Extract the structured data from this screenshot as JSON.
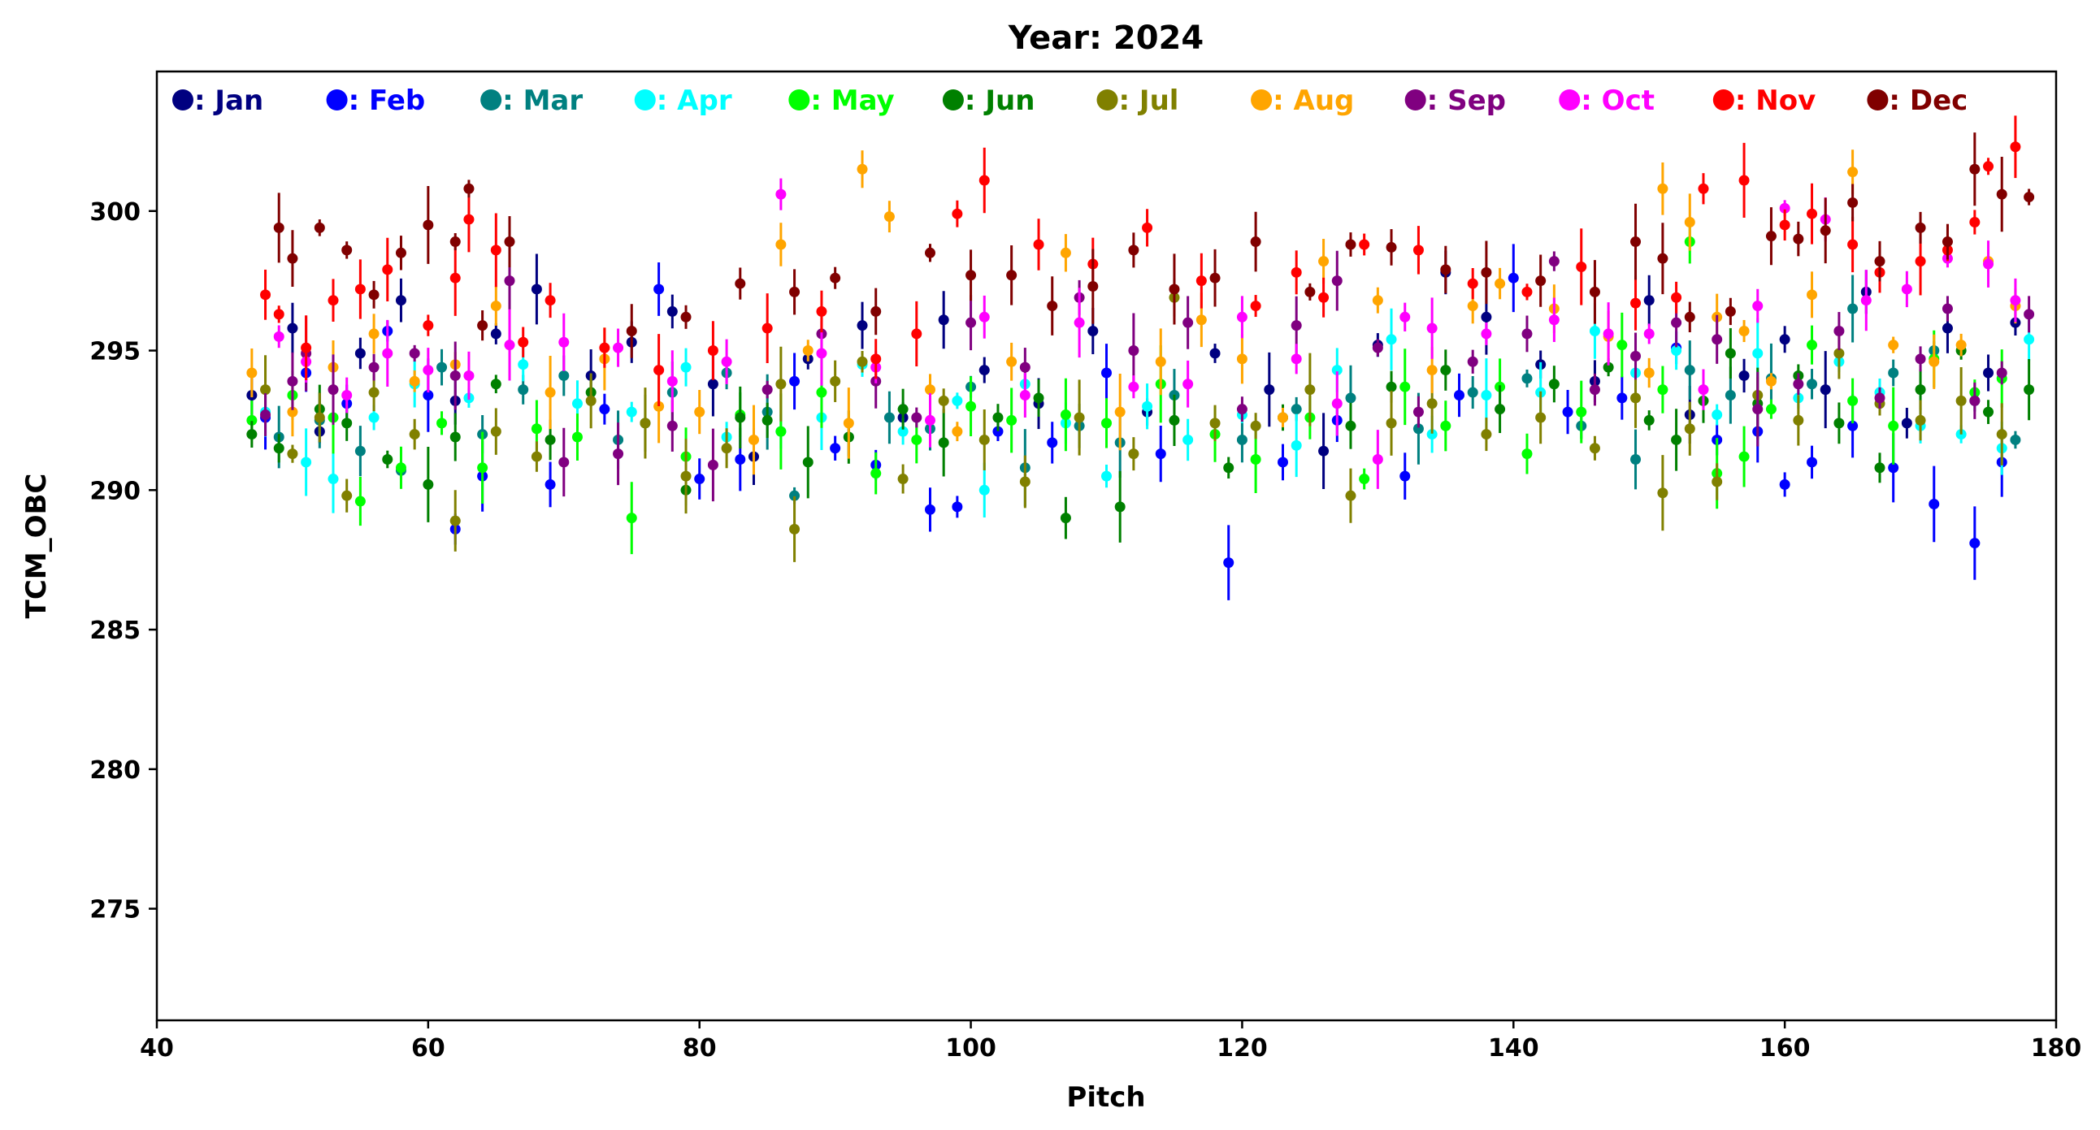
{
  "chart_data": {
    "type": "scatter",
    "title": "Year: 2024",
    "xlabel": "Pitch",
    "ylabel": "TCM_OBC",
    "xlim": [
      40,
      180
    ],
    "ylim": [
      271,
      305
    ],
    "xticks": [
      40,
      60,
      80,
      100,
      120,
      140,
      160,
      180
    ],
    "yticks": [
      275,
      280,
      285,
      290,
      295,
      300
    ],
    "grid": false,
    "legend": "top",
    "error_bars": true,
    "series": [
      {
        "name": ": Jan",
        "color": "#000080",
        "x": [
          47,
          50,
          52,
          55,
          58,
          62,
          65,
          68,
          72,
          75,
          78,
          81,
          84,
          88,
          92,
          95,
          98,
          101,
          105,
          109,
          113,
          118,
          122,
          126,
          130,
          135,
          138,
          142,
          146,
          150,
          153,
          157,
          160,
          163,
          166,
          169,
          172,
          175,
          177
        ],
        "y": [
          293.4,
          295.8,
          292.1,
          294.9,
          296.8,
          293.2,
          295.6,
          297.2,
          294.1,
          295.3,
          296.4,
          293.8,
          291.2,
          294.7,
          295.9,
          292.6,
          296.1,
          294.3,
          293.1,
          295.7,
          292.8,
          294.9,
          293.6,
          291.4,
          295.2,
          297.8,
          296.2,
          294.5,
          293.9,
          296.8,
          292.7,
          294.1,
          295.4,
          293.6,
          297.1,
          292.4,
          295.8,
          294.2,
          296.0
        ]
      },
      {
        "name": ": Feb",
        "color": "#0000ff",
        "x": [
          48,
          51,
          54,
          57,
          60,
          62,
          64,
          69,
          73,
          77,
          80,
          83,
          87,
          90,
          93,
          97,
          99,
          102,
          106,
          110,
          114,
          119,
          123,
          127,
          132,
          136,
          140,
          144,
          148,
          152,
          155,
          158,
          160,
          162,
          165,
          168,
          171,
          174,
          176
        ],
        "y": [
          292.6,
          294.2,
          293.1,
          295.7,
          293.4,
          288.6,
          290.5,
          290.2,
          292.9,
          297.2,
          290.4,
          291.1,
          293.9,
          291.5,
          290.9,
          289.3,
          289.4,
          292.1,
          291.7,
          294.2,
          291.3,
          287.4,
          291.0,
          292.5,
          290.5,
          293.4,
          297.6,
          292.8,
          293.3,
          295.1,
          291.8,
          292.1,
          290.2,
          291.0,
          292.3,
          290.8,
          289.5,
          288.1,
          291.0
        ]
      },
      {
        "name": ": Mar",
        "color": "#008080",
        "x": [
          49,
          52,
          55,
          58,
          61,
          64,
          67,
          70,
          74,
          78,
          82,
          85,
          87,
          91,
          94,
          97,
          100,
          104,
          108,
          111,
          115,
          120,
          124,
          128,
          133,
          137,
          141,
          145,
          149,
          153,
          156,
          159,
          162,
          165,
          168,
          171,
          174,
          177
        ],
        "y": [
          291.9,
          292.5,
          291.4,
          290.7,
          294.4,
          292.0,
          293.6,
          294.1,
          291.8,
          293.5,
          294.2,
          292.8,
          289.8,
          291.9,
          292.6,
          292.2,
          293.7,
          290.8,
          292.3,
          291.7,
          293.4,
          291.8,
          292.9,
          293.3,
          292.2,
          293.5,
          294.0,
          292.3,
          291.1,
          294.3,
          293.4,
          294.0,
          293.8,
          296.5,
          294.2,
          295.0,
          293.2,
          291.8
        ]
      },
      {
        "name": ": Apr",
        "color": "#00ffff",
        "x": [
          48,
          51,
          53,
          56,
          59,
          63,
          67,
          71,
          75,
          79,
          82,
          86,
          89,
          92,
          95,
          99,
          101,
          104,
          107,
          110,
          113,
          116,
          120,
          124,
          127,
          131,
          134,
          138,
          142,
          146,
          149,
          152,
          155,
          158,
          161,
          164,
          167,
          170,
          173,
          176,
          178
        ],
        "y": [
          292.8,
          291.0,
          290.4,
          292.6,
          293.8,
          293.3,
          294.5,
          293.1,
          292.8,
          294.4,
          291.9,
          292.1,
          292.6,
          294.5,
          292.1,
          293.2,
          290.0,
          293.8,
          292.4,
          290.5,
          293.0,
          291.8,
          292.7,
          291.6,
          294.3,
          295.4,
          292.0,
          293.4,
          293.5,
          295.7,
          294.2,
          295.0,
          292.7,
          294.9,
          293.3,
          294.6,
          293.5,
          292.3,
          292.0,
          291.5,
          295.4
        ]
      },
      {
        "name": ": May",
        "color": "#00ff00",
        "x": [
          47,
          50,
          53,
          55,
          58,
          61,
          64,
          68,
          71,
          75,
          79,
          83,
          86,
          89,
          93,
          96,
          100,
          103,
          107,
          110,
          114,
          118,
          121,
          125,
          129,
          132,
          135,
          139,
          141,
          145,
          148,
          151,
          153,
          155,
          157,
          159,
          162,
          165,
          168,
          171,
          174,
          176
        ],
        "y": [
          292.5,
          293.4,
          292.6,
          289.6,
          290.8,
          292.4,
          290.8,
          292.2,
          291.9,
          289.0,
          291.2,
          292.7,
          292.1,
          293.5,
          290.6,
          291.8,
          293.0,
          292.5,
          292.7,
          292.4,
          293.8,
          292.0,
          291.1,
          292.6,
          290.4,
          293.7,
          292.3,
          293.7,
          291.3,
          292.8,
          295.2,
          293.6,
          298.9,
          290.6,
          291.2,
          292.9,
          295.2,
          293.2,
          292.3,
          294.7,
          293.5,
          294.0
        ]
      },
      {
        "name": ": Jun",
        "color": "#008000",
        "x": [
          47,
          49,
          52,
          54,
          57,
          60,
          62,
          65,
          69,
          72,
          76,
          79,
          83,
          85,
          88,
          91,
          95,
          98,
          102,
          105,
          107,
          111,
          115,
          119,
          123,
          128,
          131,
          135,
          139,
          143,
          147,
          150,
          152,
          154,
          156,
          158,
          161,
          164,
          167,
          170,
          173,
          175,
          178
        ],
        "y": [
          292.0,
          291.5,
          292.9,
          292.4,
          291.1,
          290.2,
          291.9,
          293.8,
          291.8,
          293.5,
          292.4,
          290.0,
          292.6,
          292.5,
          291.0,
          291.9,
          292.9,
          291.7,
          292.6,
          293.3,
          289.0,
          289.4,
          292.5,
          290.8,
          292.6,
          292.3,
          293.7,
          294.3,
          292.9,
          293.8,
          294.4,
          292.5,
          291.8,
          293.2,
          294.9,
          293.1,
          294.1,
          292.4,
          290.8,
          293.6,
          295.0,
          292.8,
          293.6
        ]
      },
      {
        "name": ": Jul",
        "color": "#808000",
        "x": [
          48,
          50,
          52,
          54,
          56,
          59,
          62,
          65,
          68,
          72,
          76,
          79,
          82,
          86,
          87,
          90,
          92,
          95,
          98,
          101,
          104,
          108,
          112,
          115,
          118,
          121,
          125,
          128,
          131,
          134,
          138,
          142,
          146,
          149,
          151,
          153,
          155,
          158,
          161,
          164,
          167,
          170,
          173,
          176
        ],
        "y": [
          293.6,
          291.3,
          292.6,
          289.8,
          293.5,
          292.0,
          288.9,
          292.1,
          291.2,
          293.2,
          292.4,
          290.5,
          291.5,
          293.8,
          288.6,
          293.9,
          294.6,
          290.4,
          293.2,
          291.8,
          290.3,
          292.6,
          291.3,
          296.9,
          292.4,
          292.3,
          293.6,
          289.8,
          292.4,
          293.1,
          292.0,
          292.6,
          291.5,
          293.3,
          289.9,
          292.2,
          290.3,
          293.4,
          292.5,
          294.9,
          293.1,
          292.5,
          293.2,
          292.0
        ]
      },
      {
        "name": ": Aug",
        "color": "#ffa500",
        "x": [
          47,
          50,
          53,
          56,
          59,
          62,
          65,
          69,
          73,
          77,
          80,
          84,
          86,
          88,
          91,
          92,
          94,
          97,
          99,
          103,
          107,
          111,
          114,
          117,
          120,
          123,
          126,
          130,
          134,
          137,
          139,
          143,
          147,
          150,
          151,
          153,
          155,
          157,
          159,
          162,
          165,
          168,
          171,
          173,
          175,
          177
        ],
        "y": [
          294.2,
          292.8,
          294.4,
          295.6,
          293.9,
          294.5,
          296.6,
          293.5,
          294.7,
          293.0,
          292.8,
          291.8,
          298.8,
          295.0,
          292.4,
          301.5,
          299.8,
          293.6,
          292.1,
          294.6,
          298.5,
          292.8,
          294.6,
          296.1,
          294.7,
          292.6,
          298.2,
          296.8,
          294.3,
          296.6,
          297.4,
          296.5,
          295.5,
          294.2,
          300.8,
          299.6,
          296.2,
          295.7,
          293.9,
          297.0,
          301.4,
          295.2,
          294.6,
          295.2,
          298.2,
          296.6
        ]
      },
      {
        "name": ": Sep",
        "color": "#800080",
        "x": [
          48,
          50,
          51,
          53,
          56,
          59,
          62,
          66,
          70,
          74,
          78,
          81,
          85,
          89,
          93,
          96,
          100,
          104,
          108,
          112,
          116,
          120,
          124,
          127,
          130,
          133,
          137,
          141,
          143,
          146,
          149,
          152,
          155,
          158,
          161,
          164,
          167,
          170,
          172,
          174,
          176,
          178
        ],
        "y": [
          292.7,
          293.9,
          294.9,
          293.6,
          294.4,
          294.9,
          294.1,
          297.5,
          291.0,
          291.3,
          292.3,
          290.9,
          293.6,
          295.6,
          293.9,
          292.6,
          296.0,
          294.4,
          296.9,
          295.0,
          296.0,
          292.9,
          295.9,
          297.5,
          295.1,
          292.8,
          294.6,
          295.6,
          298.2,
          293.6,
          294.8,
          296.0,
          295.4,
          292.9,
          293.8,
          295.7,
          293.3,
          294.7,
          296.5,
          293.2,
          294.2,
          296.3
        ]
      },
      {
        "name": ": Oct",
        "color": "#ff00ff",
        "x": [
          49,
          51,
          54,
          57,
          60,
          63,
          66,
          70,
          74,
          78,
          82,
          86,
          89,
          93,
          97,
          101,
          104,
          108,
          112,
          116,
          120,
          124,
          127,
          130,
          132,
          134,
          138,
          143,
          147,
          150,
          154,
          158,
          160,
          163,
          166,
          169,
          172,
          175,
          177
        ],
        "y": [
          295.5,
          294.6,
          293.4,
          294.9,
          294.3,
          294.1,
          295.2,
          295.3,
          295.1,
          293.9,
          294.6,
          300.6,
          294.9,
          294.4,
          292.5,
          296.2,
          293.4,
          296.0,
          293.7,
          293.8,
          296.2,
          294.7,
          293.1,
          291.1,
          296.2,
          295.8,
          295.6,
          296.1,
          295.6,
          295.6,
          293.6,
          296.6,
          300.1,
          299.7,
          296.8,
          297.2,
          298.3,
          298.1,
          296.8
        ]
      },
      {
        "name": ": Nov",
        "color": "#ff0000",
        "x": [
          48,
          49,
          51,
          53,
          55,
          57,
          60,
          62,
          63,
          65,
          67,
          69,
          73,
          77,
          81,
          85,
          89,
          93,
          96,
          99,
          101,
          105,
          109,
          113,
          117,
          121,
          124,
          126,
          129,
          133,
          137,
          141,
          145,
          149,
          152,
          154,
          157,
          160,
          162,
          165,
          167,
          170,
          172,
          174,
          175,
          177
        ],
        "y": [
          297.0,
          296.3,
          295.1,
          296.8,
          297.2,
          297.9,
          295.9,
          297.6,
          299.7,
          298.6,
          295.3,
          296.8,
          295.1,
          294.3,
          295.0,
          295.8,
          296.4,
          294.7,
          295.6,
          299.9,
          301.1,
          298.8,
          298.1,
          299.4,
          297.5,
          296.6,
          297.8,
          296.9,
          298.8,
          298.6,
          297.4,
          297.1,
          298.0,
          296.7,
          296.9,
          300.8,
          301.1,
          299.5,
          299.9,
          298.8,
          297.8,
          298.2,
          298.6,
          299.6,
          301.6,
          302.3
        ]
      },
      {
        "name": ": Dec",
        "color": "#800000",
        "x": [
          49,
          50,
          52,
          54,
          56,
          58,
          60,
          62,
          63,
          64,
          66,
          75,
          79,
          83,
          87,
          90,
          93,
          97,
          100,
          103,
          106,
          109,
          112,
          115,
          118,
          121,
          125,
          128,
          131,
          135,
          138,
          142,
          146,
          149,
          151,
          153,
          156,
          159,
          161,
          163,
          165,
          167,
          170,
          172,
          174,
          176,
          178
        ],
        "y": [
          299.4,
          298.3,
          299.4,
          298.6,
          297.0,
          298.5,
          299.5,
          298.9,
          300.8,
          295.9,
          298.9,
          295.7,
          296.2,
          297.4,
          297.1,
          297.6,
          296.4,
          298.5,
          297.7,
          297.7,
          296.6,
          297.3,
          298.6,
          297.2,
          297.6,
          298.9,
          297.1,
          298.8,
          298.7,
          297.9,
          297.8,
          297.5,
          297.1,
          298.9,
          298.3,
          296.2,
          296.4,
          299.1,
          299.0,
          299.3,
          300.3,
          298.2,
          299.4,
          298.9,
          301.5,
          300.6,
          300.5
        ]
      }
    ]
  }
}
